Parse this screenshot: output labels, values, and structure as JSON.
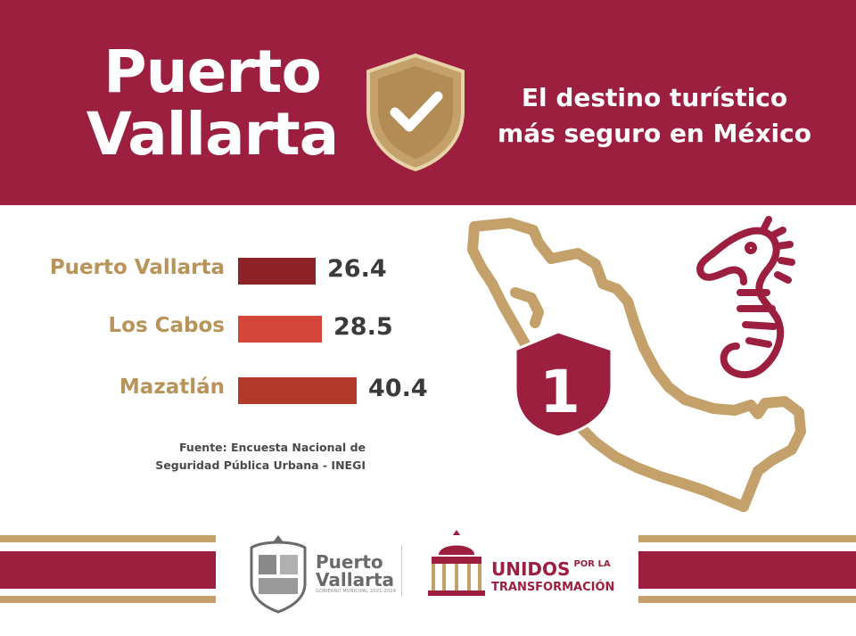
{
  "header": {
    "title_line1": "Puerto",
    "title_line2": "Vallarta",
    "tagline_line1": "El destino turístico",
    "tagline_line2": "más seguro en México",
    "shield_icon": "check-shield-icon"
  },
  "chart_data": {
    "type": "bar",
    "orientation": "horizontal",
    "categories": [
      "Puerto Vallarta",
      "Los Cabos",
      "Mazatlán"
    ],
    "values": [
      26.4,
      28.5,
      40.4
    ],
    "value_labels": [
      "26.4",
      "28.5",
      "40.4"
    ],
    "bar_colors": [
      "#8d2226",
      "#d4463a",
      "#b33a2b"
    ],
    "label_color": "#b8935a",
    "xlim": [
      0,
      40.4
    ],
    "grid": false
  },
  "source": {
    "line1": "Fuente: Encuesta Nacional de",
    "line2": "Seguridad Pública Urbana - INEGI"
  },
  "map": {
    "badge_number": "1",
    "map_icon": "mexico-map-outline",
    "badge_icon": "rank-shield-icon",
    "decor_icon": "seahorse-icon"
  },
  "footer": {
    "pv_line1": "Puerto",
    "pv_line2": "Vallarta",
    "pv_small": "GOBIERNO MUNICIPAL 2021-2024",
    "unidos_main": "UNIDOS",
    "unidos_small1": "POR LA",
    "unidos_line2": "TRANSFORMACIÓN"
  },
  "colors": {
    "brand_red": "#9c1f3f",
    "gold": "#c4a06a"
  }
}
